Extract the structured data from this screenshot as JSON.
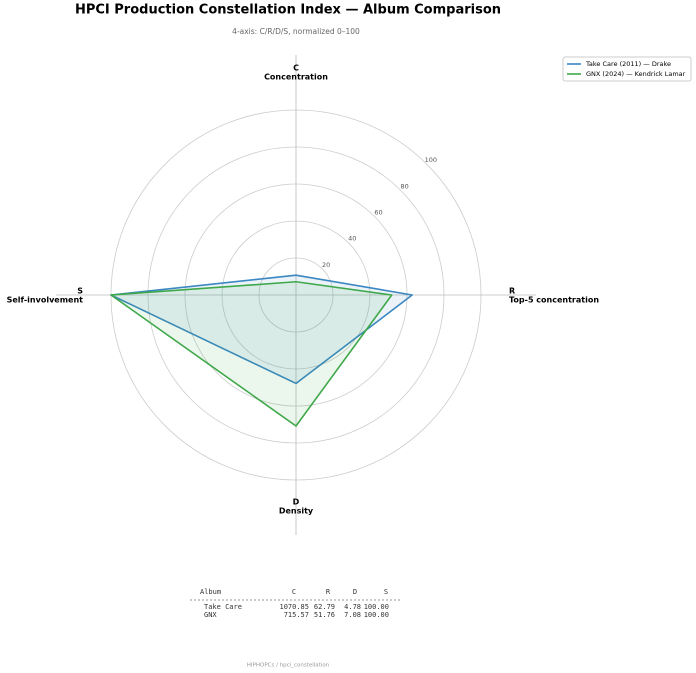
{
  "chart_data": {
    "type": "radar",
    "title": "HPCI Production Constellation Index — Album Comparison",
    "subtitle": "4-axis: C/R/D/S, normalized 0–100",
    "categories": [
      "C",
      "R",
      "D",
      "S"
    ],
    "axis_titles": [
      "Concentration",
      "Top-5 concentration",
      "Density",
      "Self-involvement"
    ],
    "rlim": [
      0,
      100
    ],
    "rticks": [
      20,
      40,
      60,
      80,
      100
    ],
    "grid": true,
    "legend": "upper right",
    "series": [
      {
        "name": "Take Care (2011) — Drake",
        "color": "#3b87c2",
        "values": [
          10.71,
          62.79,
          47.8,
          100
        ]
      },
      {
        "name": "GNX (2024) — Kendrick Lamar",
        "color": "#3fa84a",
        "values": [
          7.16,
          51.76,
          70.8,
          100
        ]
      }
    ]
  },
  "table": {
    "header": [
      "Album",
      "C",
      "R",
      "D",
      "S"
    ],
    "rows": [
      [
        "Take Care",
        "1070.85",
        "62.79",
        "4.78",
        "100.00"
      ],
      [
        "GNX",
        "715.57",
        "51.76",
        "7.08",
        "100.00"
      ]
    ]
  },
  "footer": "HIPHOPCs / hpci_constellation"
}
